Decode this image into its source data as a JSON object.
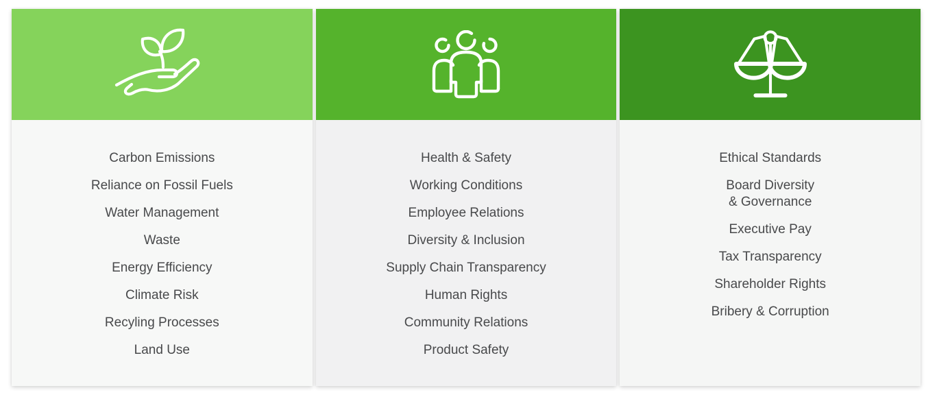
{
  "colors": {
    "page_background": "#ffffff",
    "text": "#48494b",
    "environmental_header": "#85d35b",
    "social_header": "#55b32c",
    "governance_header": "#3c9420",
    "environmental_body": "#f7f8f7",
    "social_body": "#f1f1f2",
    "governance_body": "#f5f6f5"
  },
  "columns": [
    {
      "id": "environmental",
      "icon": "seedling-in-hand-icon",
      "header_color": "#85d35b",
      "body_color": "#f7f8f7",
      "items": [
        "Carbon Emissions",
        "Reliance on Fossil Fuels",
        "Water Management",
        "Waste",
        "Energy Efficiency",
        "Climate Risk",
        "Recyling Processes",
        "Land Use"
      ]
    },
    {
      "id": "social",
      "icon": "people-group-icon",
      "header_color": "#55b32c",
      "body_color": "#f1f1f2",
      "items": [
        "Health & Safety",
        "Working Conditions",
        "Employee Relations",
        "Diversity & Inclusion",
        "Supply Chain Transparency",
        "Human Rights",
        "Community Relations",
        "Product Safety"
      ]
    },
    {
      "id": "governance",
      "icon": "justice-scales-icon",
      "header_color": "#3c9420",
      "body_color": "#f5f6f5",
      "items": [
        "Ethical Standards",
        "Board Diversity\n& Governance",
        "Executive Pay",
        "Tax Transparency",
        "Shareholder Rights",
        "Bribery & Corruption"
      ]
    }
  ]
}
